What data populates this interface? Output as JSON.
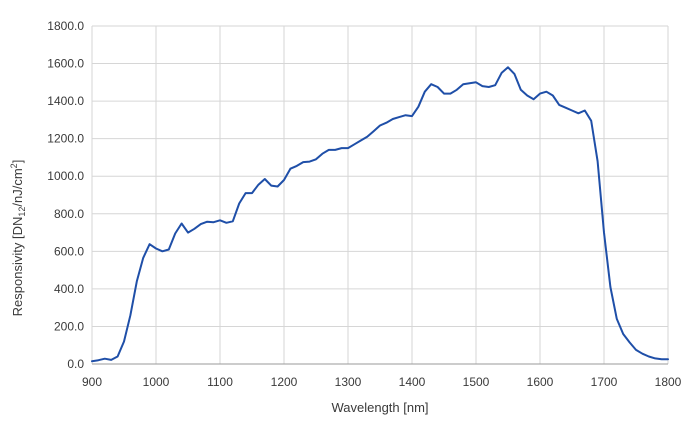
{
  "chart_data": {
    "type": "line",
    "xlabel": "Wavelength [nm]",
    "ylabel": {
      "prefix": "Responsivity [DN",
      "subscript": "12",
      "middle": "/nJ/cm",
      "superscript": "2",
      "suffix": "]"
    },
    "xlim": [
      900,
      1800
    ],
    "ylim": [
      0,
      1800
    ],
    "x_ticks": [
      900,
      1000,
      1100,
      1200,
      1300,
      1400,
      1500,
      1600,
      1700,
      1800
    ],
    "x_tick_labels": [
      "900",
      "1000",
      "1100",
      "1200",
      "1300",
      "1400",
      "1500",
      "1600",
      "1700",
      "1800"
    ],
    "y_ticks": [
      0,
      200,
      400,
      600,
      800,
      1000,
      1200,
      1400,
      1600,
      1800
    ],
    "y_tick_labels": [
      "0.0",
      "200.0",
      "400.0",
      "600.0",
      "800.0",
      "1000.0",
      "1200.0",
      "1400.0",
      "1600.0",
      "1800.0"
    ],
    "grid": true,
    "series": [
      {
        "color": "#1f4fa8",
        "x": [
          900,
          910,
          920,
          930,
          940,
          950,
          960,
          970,
          980,
          990,
          1000,
          1010,
          1020,
          1030,
          1040,
          1050,
          1060,
          1070,
          1080,
          1090,
          1100,
          1110,
          1120,
          1130,
          1140,
          1150,
          1160,
          1170,
          1180,
          1190,
          1200,
          1210,
          1220,
          1230,
          1240,
          1250,
          1260,
          1270,
          1280,
          1290,
          1300,
          1310,
          1320,
          1330,
          1340,
          1350,
          1360,
          1370,
          1380,
          1390,
          1400,
          1410,
          1420,
          1430,
          1440,
          1450,
          1460,
          1470,
          1480,
          1490,
          1500,
          1510,
          1520,
          1530,
          1540,
          1550,
          1560,
          1570,
          1580,
          1590,
          1600,
          1610,
          1620,
          1630,
          1640,
          1650,
          1660,
          1670,
          1680,
          1690,
          1700,
          1710,
          1720,
          1730,
          1740,
          1750,
          1760,
          1770,
          1780,
          1790,
          1800
        ],
        "y": [
          15,
          20,
          28,
          22,
          40,
          120,
          260,
          440,
          565,
          638,
          615,
          600,
          610,
          695,
          748,
          700,
          720,
          745,
          758,
          755,
          765,
          752,
          760,
          855,
          910,
          910,
          955,
          985,
          950,
          945,
          980,
          1040,
          1055,
          1075,
          1078,
          1090,
          1120,
          1140,
          1140,
          1150,
          1150,
          1170,
          1190,
          1210,
          1240,
          1270,
          1285,
          1305,
          1315,
          1325,
          1320,
          1370,
          1450,
          1490,
          1475,
          1440,
          1440,
          1460,
          1490,
          1495,
          1500,
          1480,
          1475,
          1485,
          1550,
          1580,
          1545,
          1460,
          1430,
          1410,
          1440,
          1450,
          1430,
          1380,
          1365,
          1350,
          1335,
          1350,
          1295,
          1080,
          700,
          410,
          240,
          160,
          115,
          75,
          55,
          40,
          30,
          25,
          25
        ]
      }
    ]
  }
}
